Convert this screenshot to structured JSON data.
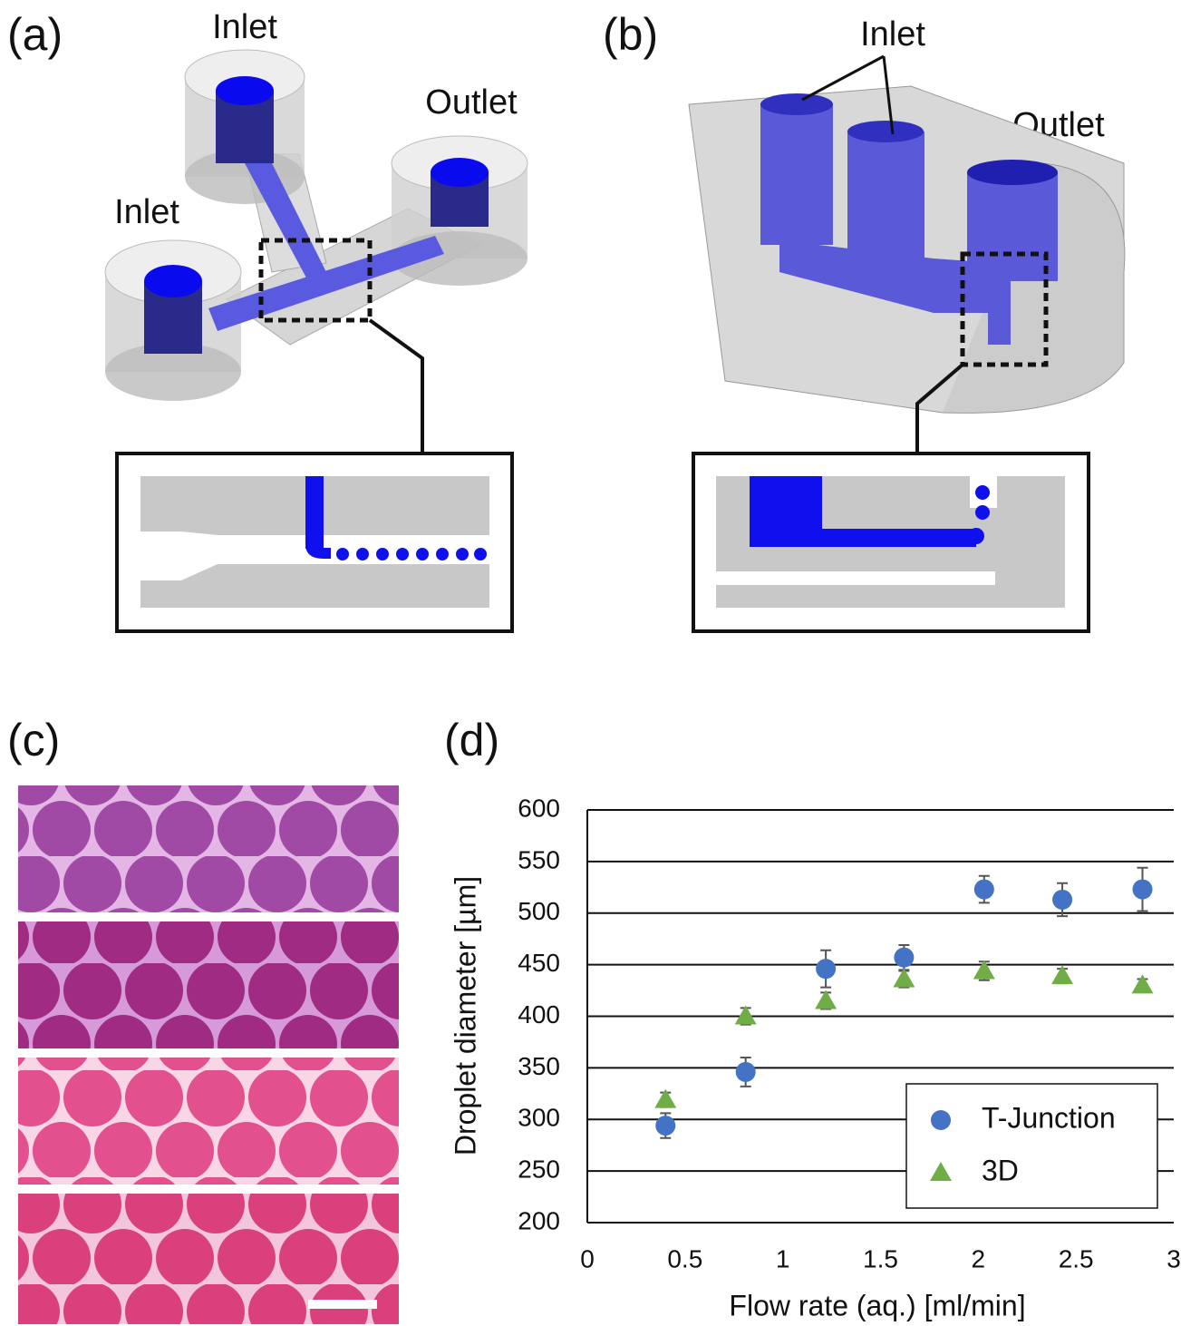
{
  "panels": {
    "a": {
      "label": "(a)",
      "annotations": [
        "Inlet",
        "Outlet",
        "Inlet"
      ]
    },
    "b": {
      "label": "(b)",
      "annotations": [
        "Inlet",
        "Outlet"
      ]
    },
    "c": {
      "label": "(c)"
    },
    "d": {
      "label": "(d)"
    }
  },
  "chart_data": {
    "type": "scatter",
    "x_label": "Flow rate (aq.) [ml/min]",
    "y_label": "Droplet diameter [µm]",
    "x": [
      0.4,
      0.81,
      1.22,
      1.62,
      2.03,
      2.43,
      2.84
    ],
    "series": [
      {
        "name": "T-Junction",
        "color": "#4472c4",
        "marker": "circle",
        "values": [
          294,
          346,
          446,
          457,
          523,
          513,
          523
        ],
        "errors": [
          12,
          14,
          18,
          12,
          13,
          16,
          21
        ]
      },
      {
        "name": "3D",
        "color": "#70ad47",
        "marker": "triangle",
        "values": [
          319,
          400,
          415,
          436,
          444,
          439,
          430
        ],
        "errors": [
          7,
          8,
          8,
          8,
          9,
          7,
          6
        ]
      }
    ],
    "xlim": [
      0,
      3
    ],
    "xticks": [
      0,
      0.5,
      1,
      1.5,
      2,
      2.5,
      3
    ],
    "ylim": [
      200,
      600
    ],
    "yticks": [
      200,
      250,
      300,
      350,
      400,
      450,
      500,
      550,
      600
    ],
    "grid": true,
    "legend_position": "lower right"
  }
}
